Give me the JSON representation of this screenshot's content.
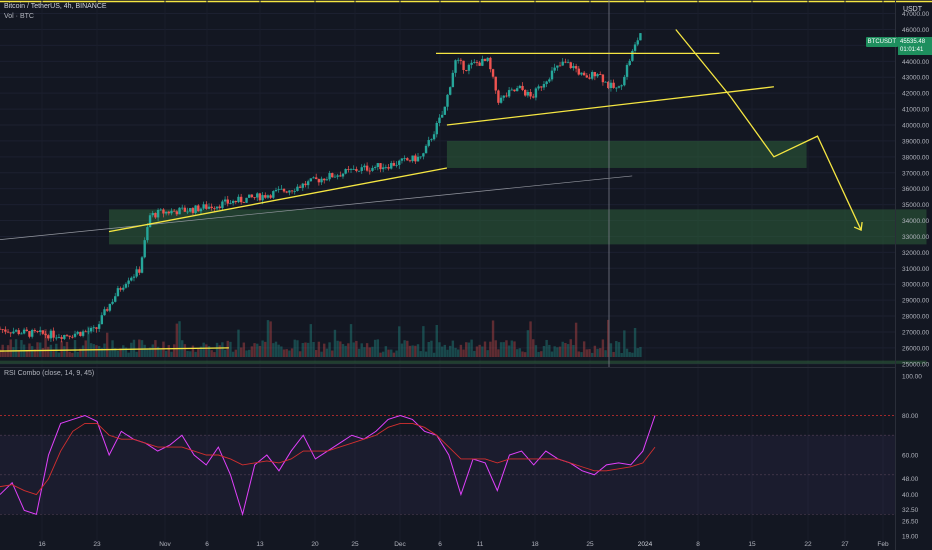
{
  "header": {
    "title": "Bitcoin / TetherUS, 4h, BINANCE",
    "volume_label": "Vol · BTC",
    "rsi_label": "RSI Combo (close, 14, 9, 45)",
    "currency": "USDT"
  },
  "price_tags": {
    "symbol": "BTCUSDT",
    "price": "45535.48",
    "countdown": "01:01:41"
  },
  "colors": {
    "background": "#131722",
    "up": "#26a69a",
    "down": "#ef5350",
    "trend": "#f5e642",
    "zone": "#2e5e3a",
    "rsi": "#e040fb",
    "rsi_ma": "#d32f2f"
  },
  "chart_data": [
    {
      "type": "candlestick",
      "title": "Bitcoin / TetherUS, 4h, BINANCE",
      "y_axis_ticks": [
        25000,
        26000,
        27000,
        28000,
        29000,
        30000,
        31000,
        32000,
        33000,
        34000,
        35000,
        36000,
        37000,
        38000,
        39000,
        40000,
        41000,
        42000,
        43000,
        44000,
        45000,
        46000,
        47000
      ],
      "ylim": [
        24800,
        47600
      ],
      "x_tick_labels": [
        "16",
        "23",
        "Nov",
        "6",
        "13",
        "20",
        "25",
        "Dec",
        "6",
        "11",
        "18",
        "25",
        "2024",
        "8",
        "15",
        "22",
        "27",
        "Feb"
      ],
      "price_path": [
        [
          0,
          27200
        ],
        [
          3,
          26900
        ],
        [
          6,
          26800
        ],
        [
          9,
          27100
        ],
        [
          10,
          28400
        ],
        [
          11,
          29500
        ],
        [
          12,
          30400
        ],
        [
          13,
          30800
        ],
        [
          14,
          34300
        ],
        [
          15,
          34500
        ],
        [
          18,
          34700
        ],
        [
          21,
          35100
        ],
        [
          24,
          35500
        ],
        [
          27,
          36000
        ],
        [
          30,
          36700
        ],
        [
          33,
          37200
        ],
        [
          36,
          37500
        ],
        [
          39,
          38000
        ],
        [
          40,
          39500
        ],
        [
          41,
          40900
        ],
        [
          42,
          44000
        ],
        [
          43,
          43600
        ],
        [
          44,
          43900
        ],
        [
          45,
          44000
        ],
        [
          46,
          41500
        ],
        [
          47,
          42000
        ],
        [
          48,
          42300
        ],
        [
          49,
          41700
        ],
        [
          50,
          42600
        ],
        [
          51,
          43400
        ],
        [
          52,
          43900
        ],
        [
          53,
          43600
        ],
        [
          54,
          42800
        ],
        [
          55,
          43400
        ],
        [
          56,
          42500
        ],
        [
          57,
          42200
        ],
        [
          58,
          44100
        ],
        [
          59,
          45800
        ]
      ],
      "zones": [
        {
          "from_x": 41,
          "to_x": 74,
          "low": 37300,
          "high": 39000
        },
        {
          "from_x": 10,
          "to_x": 85,
          "low": 32500,
          "high": 34700
        },
        {
          "from_x": 0,
          "to_x": 85,
          "low": 25000,
          "high": 25200
        }
      ],
      "trendlines": [
        {
          "x1": 10,
          "y1": 33300,
          "x2": 41,
          "y2": 37300
        },
        {
          "x1": 41,
          "y1": 40000,
          "x2": 71,
          "y2": 42400
        },
        {
          "x1": 40,
          "y1": 44500,
          "x2": 66,
          "y2": 44500
        },
        {
          "x1": 0,
          "y1": 25800,
          "x2": 21,
          "y2": 26000
        }
      ],
      "projection_path": [
        [
          62,
          46000
        ],
        [
          67,
          41800
        ],
        [
          71,
          38000
        ],
        [
          75,
          39300
        ],
        [
          79,
          33400
        ]
      ],
      "gray_line": {
        "x1": 0,
        "y1": 32800,
        "x2": 58,
        "y2": 36800
      }
    },
    {
      "type": "line",
      "title": "RSI Combo (close, 14, 9, 45)",
      "y_axis_ticks": [
        19.0,
        26.5,
        32.5,
        40.0,
        48.0,
        60.0,
        80.0,
        100.0
      ],
      "ylim": [
        17,
        102
      ],
      "levels": [
        80,
        70,
        50,
        30
      ],
      "series": [
        {
          "name": "RSI",
          "values": [
            40,
            46,
            32,
            30,
            60,
            76,
            78,
            80,
            77,
            60,
            72,
            68,
            66,
            62,
            65,
            70,
            60,
            55,
            64,
            50,
            30,
            55,
            60,
            52,
            62,
            70,
            58,
            62,
            66,
            70,
            68,
            72,
            78,
            80,
            78,
            72,
            70,
            60,
            40,
            58,
            56,
            42,
            60,
            62,
            55,
            62,
            58,
            56,
            52,
            50,
            55,
            56,
            55,
            62,
            80
          ]
        },
        {
          "name": "RSI MA",
          "values": [
            44,
            45,
            42,
            40,
            48,
            62,
            72,
            76,
            76,
            70,
            68,
            68,
            66,
            64,
            64,
            64,
            62,
            60,
            60,
            58,
            55,
            56,
            57,
            56,
            58,
            62,
            62,
            62,
            64,
            66,
            68,
            70,
            74,
            76,
            76,
            74,
            70,
            64,
            58,
            58,
            58,
            56,
            58,
            58,
            58,
            58,
            58,
            56,
            54,
            52,
            52,
            53,
            54,
            56,
            64
          ]
        }
      ]
    }
  ]
}
